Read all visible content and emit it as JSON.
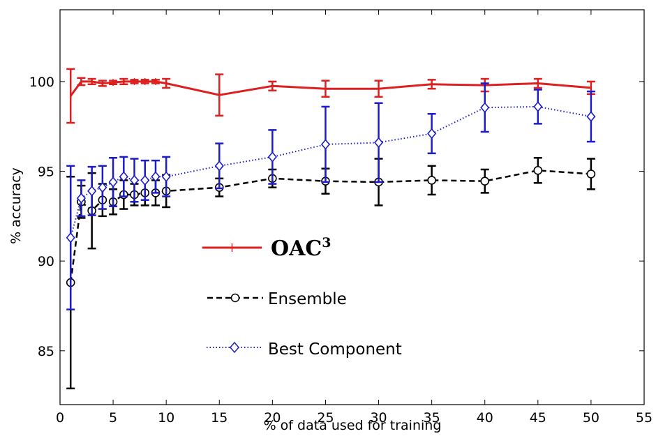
{
  "chart_data": {
    "type": "line",
    "xlabel": "% of data used for training",
    "ylabel": "% accuracy",
    "xlim": [
      0,
      55
    ],
    "ylim": [
      82,
      104
    ],
    "xticks": [
      0,
      5,
      10,
      15,
      20,
      25,
      30,
      35,
      40,
      45,
      50,
      55
    ],
    "yticks": [
      85,
      90,
      95,
      100
    ],
    "x": [
      1,
      2,
      3,
      4,
      5,
      6,
      7,
      8,
      9,
      10,
      15,
      20,
      25,
      30,
      35,
      40,
      45,
      50
    ],
    "legend_position": "center-left",
    "series": [
      {
        "name": "OAC",
        "name_sup": "3",
        "color": "#dd1f1f",
        "line_style": "solid",
        "marker": "plus",
        "values": [
          99.2,
          100.0,
          100.0,
          99.9,
          99.95,
          100.0,
          100.0,
          100.0,
          100.0,
          99.9,
          99.25,
          99.75,
          99.6,
          99.6,
          99.85,
          99.8,
          99.9,
          99.65
        ],
        "errors": [
          1.5,
          0.2,
          0.15,
          0.15,
          0.1,
          0.15,
          0.1,
          0.1,
          0.1,
          0.25,
          1.15,
          0.25,
          0.45,
          0.45,
          0.25,
          0.35,
          0.25,
          0.35
        ]
      },
      {
        "name": "Ensemble",
        "color": "#000000",
        "line_style": "dashed",
        "marker": "circle",
        "values": [
          88.8,
          93.3,
          92.8,
          93.4,
          93.3,
          93.7,
          93.7,
          93.8,
          93.8,
          93.9,
          94.1,
          94.6,
          94.45,
          94.4,
          94.5,
          94.45,
          95.05,
          94.85
        ],
        "errors": [
          5.9,
          0.9,
          2.1,
          0.9,
          0.7,
          0.8,
          0.6,
          0.7,
          0.7,
          0.9,
          0.5,
          0.5,
          0.7,
          1.3,
          0.8,
          0.65,
          0.7,
          0.85
        ]
      },
      {
        "name": "Best Component",
        "color": "#1c1cc8",
        "line_style": "dotted",
        "marker": "diamond",
        "values": [
          91.3,
          93.5,
          93.9,
          94.1,
          94.4,
          94.7,
          94.5,
          94.5,
          94.7,
          94.7,
          95.3,
          95.8,
          96.5,
          96.6,
          97.1,
          98.55,
          98.6,
          98.05
        ],
        "errors": [
          4.0,
          1.0,
          1.35,
          1.2,
          1.35,
          1.1,
          1.2,
          1.1,
          0.9,
          1.1,
          1.25,
          1.5,
          2.1,
          2.2,
          1.1,
          1.35,
          0.95,
          1.4
        ]
      }
    ]
  }
}
